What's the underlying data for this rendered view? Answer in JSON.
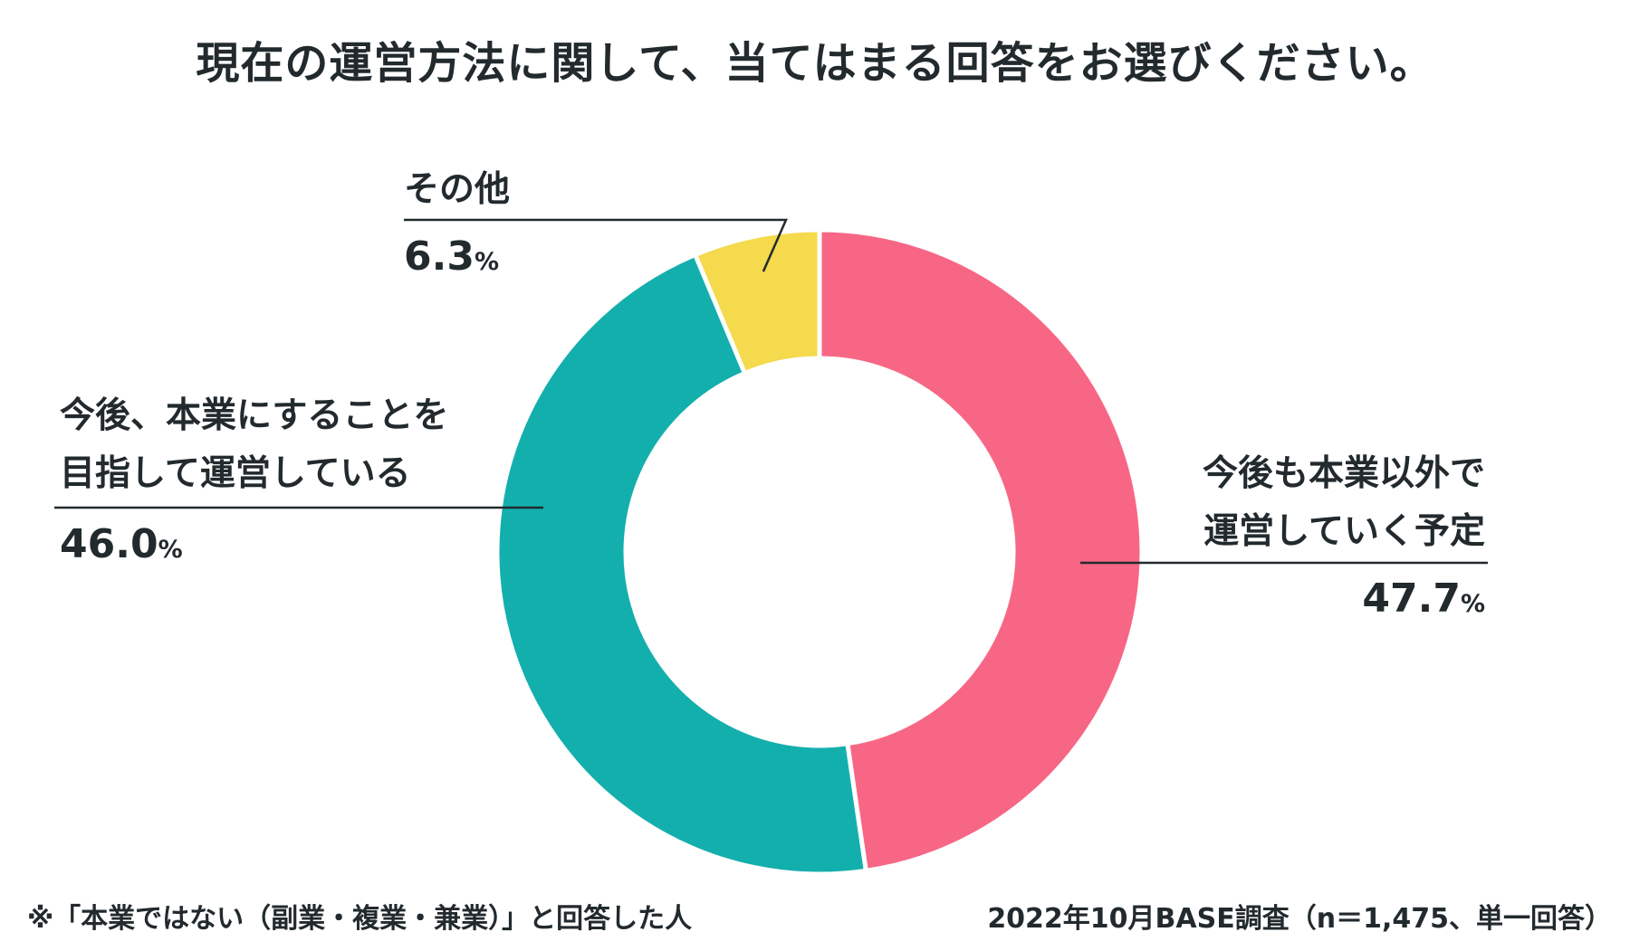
{
  "title": "現在の運営方法に関して、当てはまる回答をお選びください。",
  "chart_data": {
    "type": "pie",
    "variant": "donut",
    "title": "現在の運営方法に関して、当てはまる回答をお選びください。",
    "unit": "%",
    "slices": [
      {
        "label_lines": [
          "今後も本業以外で",
          "運営していく予定"
        ],
        "value": 47.7,
        "value_text": "47.7",
        "color": "#f76785"
      },
      {
        "label_lines": [
          "今後、本業にすることを",
          "目指して運営している"
        ],
        "value": 46.0,
        "value_text": "46.0",
        "color": "#13afad"
      },
      {
        "label_lines": [
          "その他"
        ],
        "value": 6.3,
        "value_text": "6.3",
        "color": "#f4da4c"
      }
    ]
  },
  "footnote": "※「本業ではない（副業・複業・兼業）」と回答した人",
  "source": "2022年10月BASE調査（n＝1,475、単一回答）"
}
